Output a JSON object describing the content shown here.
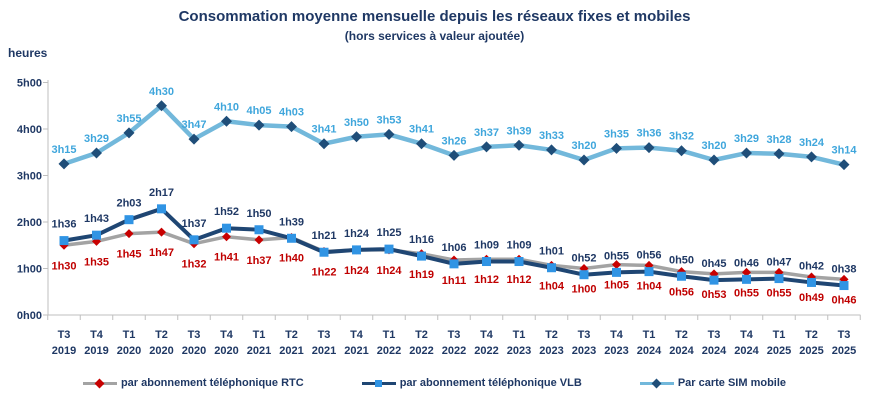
{
  "title": "Consommation moyenne mensuelle depuis les réseaux fixes et mobiles",
  "subtitle": "(hors services à valeur ajoutée)",
  "y_axis_title": "heures",
  "colors": {
    "navy_text": "#1F3864",
    "axis": "#BFBFBF"
  },
  "chart_data": {
    "type": "line",
    "title": "Consommation moyenne mensuelle depuis les réseaux fixes et mobiles",
    "subtitle": "(hors services à valeur ajoutée)",
    "ylabel": "heures",
    "ylim_hours": [
      0,
      5
    ],
    "y_tick_labels": [
      "0h00",
      "1h00",
      "2h00",
      "3h00",
      "4h00",
      "5h00"
    ],
    "grid": false,
    "legend_position": "bottom",
    "categories": [
      "T3 2019",
      "T4 2019",
      "T1 2020",
      "T2 2020",
      "T3 2020",
      "T4 2020",
      "T1 2021",
      "T2 2021",
      "T3 2021",
      "T4 2021",
      "T1 2022",
      "T2 2022",
      "T3 2022",
      "T4 2022",
      "T1 2023",
      "T2 2023",
      "T3 2023",
      "T4 2023",
      "T1 2024",
      "T2 2024",
      "T3 2024",
      "T4 2024",
      "T1 2025",
      "T2 2025",
      "T3 2025"
    ],
    "series": [
      {
        "name": "par abonnement téléphonique RTC",
        "marker": "diamond",
        "line_color": "#A3A3A3",
        "marker_color": "#C80000",
        "label_color": "#C00000",
        "values": [
          "1h30",
          "1h35",
          "1h45",
          "1h47",
          "1h32",
          "1h41",
          "1h37",
          "1h40",
          "1h22",
          "1h24",
          "1h24",
          "1h19",
          "1h11",
          "1h12",
          "1h12",
          "1h04",
          "1h00",
          "1h05",
          "1h04",
          "0h56",
          "0h53",
          "0h55",
          "0h55",
          "0h49",
          "0h46"
        ]
      },
      {
        "name": "par abonnement téléphonique VLB",
        "marker": "square",
        "line_color": "#1F4673",
        "marker_color": "#3094E4",
        "label_color": "#1F3864",
        "values": [
          "1h36",
          "1h43",
          "2h03",
          "2h17",
          "1h37",
          "1h52",
          "1h50",
          "1h39",
          "1h21",
          "1h24",
          "1h25",
          "1h16",
          "1h06",
          "1h09",
          "1h09",
          "1h01",
          "0h52",
          "0h55",
          "0h56",
          "0h50",
          "0h45",
          "0h46",
          "0h47",
          "0h42",
          "0h38"
        ]
      },
      {
        "name": "Par carte SIM mobile",
        "marker": "diamond",
        "line_color": "#72B8DB",
        "marker_color": "#1F4E79",
        "label_color": "#3FA6DC",
        "values": [
          "3h15",
          "3h29",
          "3h55",
          "4h30",
          "3h47",
          "4h10",
          "4h05",
          "4h03",
          "3h41",
          "3h50",
          "3h53",
          "3h41",
          "3h26",
          "3h37",
          "3h39",
          "3h33",
          "3h20",
          "3h35",
          "3h36",
          "3h32",
          "3h20",
          "3h29",
          "3h28",
          "3h24",
          "3h14"
        ]
      }
    ]
  }
}
